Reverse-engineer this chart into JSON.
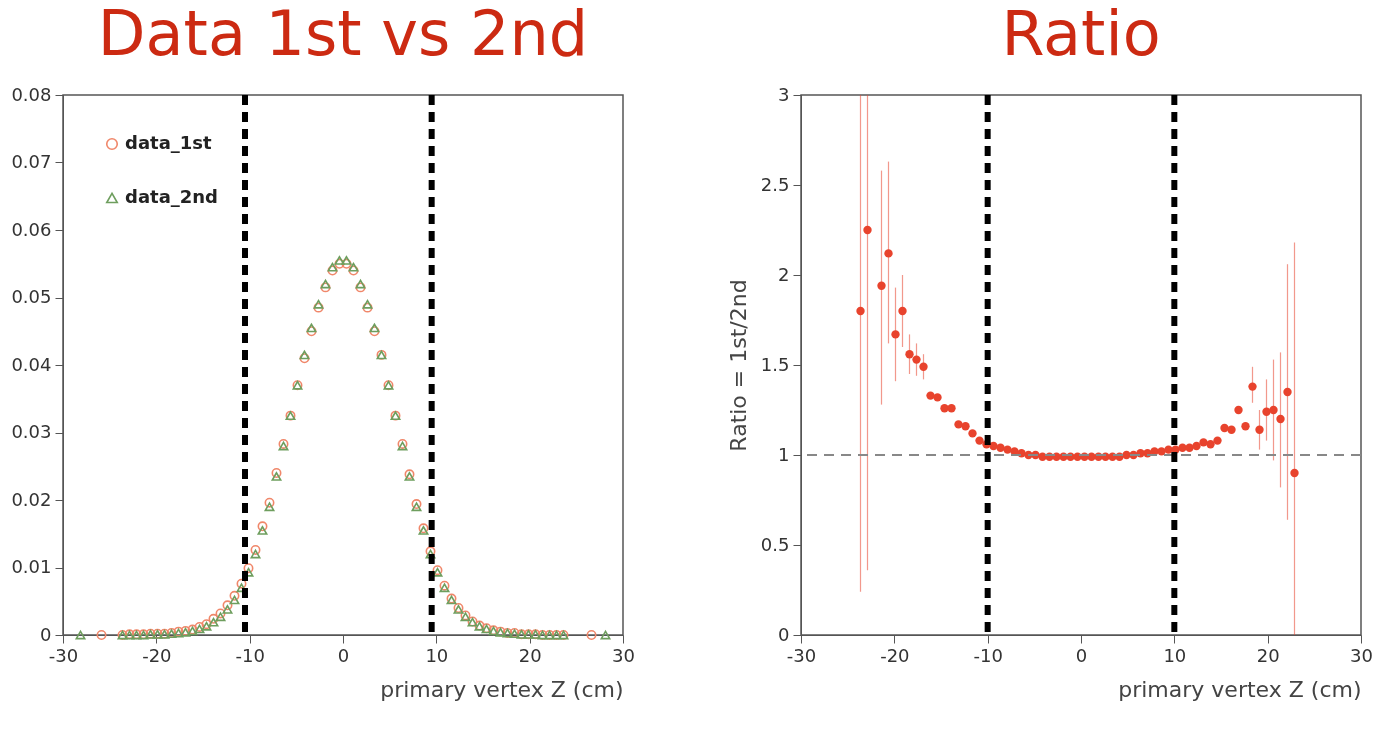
{
  "chart_data": [
    {
      "type": "scatter",
      "title": "Data 1st vs 2nd",
      "xlabel": "primary vertex Z (cm)",
      "xlim": [
        -30,
        30
      ],
      "xticks": [
        -30,
        -20,
        -10,
        0,
        10,
        20,
        30
      ],
      "ylim": [
        0,
        0.08
      ],
      "yticks": [
        0,
        0.01,
        0.02,
        0.03,
        0.04,
        0.05,
        0.06,
        0.07,
        0.08
      ],
      "grid": false,
      "legend": "top left",
      "series": [
        {
          "name": "data_1st",
          "color": "#f0876a",
          "marker": "circle",
          "x": [
            -25.875,
            -23.625,
            -22.875,
            -22.125,
            -21.375,
            -20.625,
            -19.875,
            -19.125,
            -18.375,
            -17.625,
            -16.875,
            -16.125,
            -15.375,
            -14.625,
            -13.875,
            -13.125,
            -12.375,
            -11.625,
            -10.875,
            -10.125,
            -9.375,
            -8.625,
            -7.875,
            -7.125,
            -6.375,
            -5.625,
            -4.875,
            -4.125,
            -3.375,
            -2.625,
            -1.875,
            -1.125,
            -0.375,
            0.375,
            1.125,
            1.875,
            2.625,
            3.375,
            4.125,
            4.875,
            5.625,
            6.375,
            7.125,
            7.875,
            8.625,
            9.375,
            10.125,
            10.875,
            11.625,
            12.375,
            13.125,
            13.875,
            14.625,
            15.375,
            16.125,
            16.875,
            17.625,
            18.375,
            19.125,
            19.875,
            20.625,
            21.375,
            22.125,
            22.875,
            23.625,
            26.625
          ],
          "values": [
            0,
            0,
            0.0001,
            0.0001,
            0.0001,
            0.0002,
            0.0002,
            0.0002,
            0.0003,
            0.0005,
            0.0006,
            0.0008,
            0.0012,
            0.0016,
            0.0024,
            0.0032,
            0.0044,
            0.0058,
            0.0076,
            0.0099,
            0.0126,
            0.0161,
            0.0196,
            0.024,
            0.0283,
            0.0325,
            0.037,
            0.041,
            0.045,
            0.0485,
            0.0515,
            0.054,
            0.055,
            0.055,
            0.054,
            0.0515,
            0.0485,
            0.045,
            0.0415,
            0.037,
            0.0325,
            0.0283,
            0.0238,
            0.0194,
            0.0158,
            0.0124,
            0.0096,
            0.0073,
            0.0054,
            0.004,
            0.0029,
            0.002,
            0.0014,
            0.001,
            0.0007,
            0.0005,
            0.0003,
            0.0003,
            0.0001,
            0.0001,
            0.0001,
            0,
            0,
            0,
            0,
            0
          ]
        },
        {
          "name": "data_2nd",
          "color": "#6e9e5e",
          "marker": "triangle",
          "x": [
            -28.125,
            -23.625,
            -22.875,
            -22.125,
            -21.375,
            -20.625,
            -19.875,
            -19.125,
            -18.375,
            -17.625,
            -16.875,
            -16.125,
            -15.375,
            -14.625,
            -13.875,
            -13.125,
            -12.375,
            -11.625,
            -10.875,
            -10.125,
            -9.375,
            -8.625,
            -7.875,
            -7.125,
            -6.375,
            -5.625,
            -4.875,
            -4.125,
            -3.375,
            -2.625,
            -1.875,
            -1.125,
            -0.375,
            0.375,
            1.125,
            1.875,
            2.625,
            3.375,
            4.125,
            4.875,
            5.625,
            6.375,
            7.125,
            7.875,
            8.625,
            9.375,
            10.125,
            10.875,
            11.625,
            12.375,
            13.125,
            13.875,
            14.625,
            15.375,
            16.125,
            16.875,
            17.625,
            18.375,
            19.125,
            19.875,
            20.625,
            21.375,
            22.125,
            22.875,
            23.625,
            28.125
          ],
          "values": [
            0,
            0,
            0,
            0,
            0,
            0.0001,
            0.0001,
            0.0001,
            0.0002,
            0.0003,
            0.0004,
            0.0006,
            0.0009,
            0.0013,
            0.0019,
            0.0027,
            0.0038,
            0.0052,
            0.007,
            0.0093,
            0.012,
            0.0155,
            0.019,
            0.0235,
            0.028,
            0.0325,
            0.037,
            0.0415,
            0.0455,
            0.049,
            0.052,
            0.0545,
            0.0555,
            0.0555,
            0.0545,
            0.052,
            0.049,
            0.0455,
            0.0415,
            0.037,
            0.0325,
            0.028,
            0.0235,
            0.019,
            0.0155,
            0.012,
            0.0093,
            0.007,
            0.0052,
            0.0038,
            0.0027,
            0.0019,
            0.0013,
            0.0009,
            0.0006,
            0.0004,
            0.0003,
            0.0002,
            0.0001,
            0.0001,
            0.0001,
            0,
            0,
            0,
            0,
            0
          ]
        }
      ],
      "ref_lines": [
        {
          "axis": "x",
          "value": -10.5,
          "color": "#000000",
          "line_style": "dashed"
        },
        {
          "axis": "x",
          "value": 9.5,
          "color": "#000000",
          "line_style": "dashed"
        }
      ]
    },
    {
      "type": "scatter",
      "title": "Ratio",
      "xlabel": "primary vertex Z (cm)",
      "ylabel": "Ratio = 1st/2nd",
      "xlim": [
        -30,
        30
      ],
      "xticks": [
        -30,
        -20,
        -10,
        0,
        10,
        20,
        30
      ],
      "ylim": [
        0,
        3
      ],
      "yticks": [
        0,
        0.5,
        1,
        1.5,
        2,
        2.5,
        3
      ],
      "grid": false,
      "series": [
        {
          "color": "#e8432d",
          "marker": "circle",
          "x": [
            -23.625,
            -22.875,
            -21.375,
            -20.625,
            -19.875,
            -19.125,
            -18.375,
            -17.625,
            -16.875,
            -16.125,
            -15.375,
            -14.625,
            -13.875,
            -13.125,
            -12.375,
            -11.625,
            -10.875,
            -10.125,
            -9.375,
            -8.625,
            -7.875,
            -7.125,
            -6.375,
            -5.625,
            -4.875,
            -4.125,
            -3.375,
            -2.625,
            -1.875,
            -1.125,
            -0.375,
            0.375,
            1.125,
            1.875,
            2.625,
            3.375,
            4.125,
            4.875,
            5.625,
            6.375,
            7.125,
            7.875,
            8.625,
            9.375,
            10.125,
            10.875,
            11.625,
            12.375,
            13.125,
            13.875,
            14.625,
            15.375,
            16.125,
            16.875,
            17.625,
            18.375,
            19.125,
            19.875,
            20.625,
            21.375,
            22.125,
            22.875
          ],
          "values": [
            1.8,
            2.25,
            1.94,
            2.12,
            1.67,
            1.8,
            1.56,
            1.53,
            1.49,
            1.33,
            1.32,
            1.26,
            1.26,
            1.17,
            1.16,
            1.12,
            1.08,
            1.06,
            1.05,
            1.04,
            1.03,
            1.02,
            1.01,
            1,
            1,
            0.99,
            0.99,
            0.99,
            0.99,
            0.99,
            0.99,
            0.99,
            0.99,
            0.99,
            0.99,
            0.99,
            0.99,
            1,
            1,
            1.01,
            1.01,
            1.02,
            1.02,
            1.03,
            1.03,
            1.04,
            1.04,
            1.05,
            1.07,
            1.06,
            1.08,
            1.15,
            1.14,
            1.25,
            1.16,
            1.38,
            1.14,
            1.24,
            1.25,
            1.2,
            1.35,
            0.9
          ],
          "errors": [
            [
              0.24,
              3
            ],
            [
              0.36,
              3
            ],
            [
              1.28,
              2.58
            ],
            [
              1.62,
              2.63
            ],
            [
              1.41,
              1.93
            ],
            [
              1.6,
              2
            ],
            [
              1.45,
              1.67
            ],
            [
              1.44,
              1.62
            ],
            [
              1.42,
              1.56
            ],
            null,
            null,
            null,
            null,
            null,
            null,
            null,
            null,
            null,
            null,
            null,
            null,
            null,
            null,
            null,
            null,
            null,
            null,
            null,
            null,
            null,
            null,
            null,
            null,
            null,
            null,
            null,
            null,
            null,
            null,
            null,
            null,
            null,
            null,
            null,
            null,
            null,
            null,
            null,
            null,
            null,
            null,
            null,
            null,
            null,
            null,
            [
              1.29,
              1.49
            ],
            [
              1.03,
              1.25
            ],
            [
              1.08,
              1.42
            ],
            [
              0.97,
              1.53
            ],
            [
              0.82,
              1.57
            ],
            [
              0.64,
              2.06
            ],
            [
              0,
              2.18
            ]
          ]
        }
      ],
      "ref_lines": [
        {
          "axis": "y",
          "value": 1,
          "color": "#888888",
          "line_style": "dashed"
        },
        {
          "axis": "x",
          "value": -10,
          "color": "#000000",
          "line_style": "dashed"
        },
        {
          "axis": "x",
          "value": 10,
          "color": "#000000",
          "line_style": "dashed"
        }
      ]
    }
  ]
}
